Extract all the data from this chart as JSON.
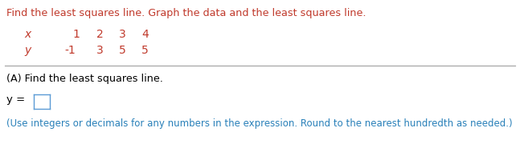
{
  "title_text": "Find the least squares line. Graph the data and the least squares line.",
  "title_color": "#c0392b",
  "table_x_label": "x",
  "table_y_label": "y",
  "x_values": [
    "1",
    "2",
    "3",
    "4"
  ],
  "y_values": [
    "-1",
    "3",
    "5",
    "5"
  ],
  "section_a_label": "(A) Find the least squares line.",
  "section_a_color": "#000000",
  "y_eq_label": "y =",
  "y_eq_color": "#000000",
  "hint_text": "(Use integers or decimals for any numbers in the expression. Round to the nearest hundredth as needed.)",
  "hint_color": "#2980b9",
  "divider_color": "#a0a0a0",
  "bg_color": "#ffffff",
  "table_color": "#c0392b",
  "box_color": "#5b9bd5",
  "fig_width": 6.47,
  "fig_height": 1.95,
  "dpi": 100
}
